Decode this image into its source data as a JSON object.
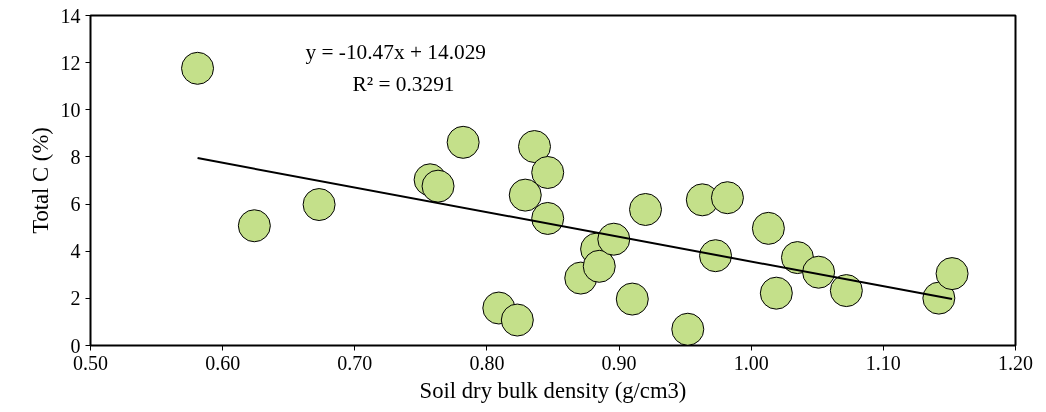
{
  "chart_data": {
    "type": "scatter",
    "xlabel": "Soil dry bulk density (g/cm3)",
    "ylabel": "Total C (%)",
    "xlim": [
      0.5,
      1.2
    ],
    "ylim": [
      0,
      14
    ],
    "xticks": [
      {
        "value": 0.5,
        "label": "0.50"
      },
      {
        "value": 0.6,
        "label": "0.60"
      },
      {
        "value": 0.7,
        "label": "0.70"
      },
      {
        "value": 0.8,
        "label": "0.80"
      },
      {
        "value": 0.9,
        "label": "0.90"
      },
      {
        "value": 1.0,
        "label": "1.00"
      },
      {
        "value": 1.1,
        "label": "1.10"
      },
      {
        "value": 1.2,
        "label": "1.20"
      }
    ],
    "yticks": [
      0,
      2,
      4,
      6,
      8,
      10,
      12,
      14
    ],
    "grid": false,
    "annotations": [
      "y = -10.47x + 14.029",
      "R² = 0.3291"
    ],
    "series": [
      {
        "marker": "circle",
        "color": "#c4e08a",
        "x": [
          0.581,
          0.624,
          0.673,
          0.757,
          0.763,
          0.782,
          0.836,
          0.846,
          0.829,
          0.846,
          0.809,
          0.823,
          0.871,
          0.883,
          0.885,
          0.896,
          0.91,
          0.92,
          0.952,
          0.963,
          0.982,
          0.973,
          1.013,
          1.019,
          1.035,
          1.051,
          1.072,
          1.142,
          1.152
        ],
        "values": [
          11.76,
          5.08,
          5.98,
          7.03,
          6.76,
          8.62,
          8.44,
          7.34,
          6.38,
          5.39,
          1.59,
          1.08,
          2.86,
          4.09,
          3.36,
          4.51,
          1.97,
          5.77,
          0.69,
          6.18,
          6.27,
          3.81,
          4.97,
          2.22,
          3.73,
          3.11,
          2.33,
          2.01,
          3.05
        ]
      },
      {
        "type": "line",
        "marker": "none",
        "color": "#000000",
        "line_style": "solid",
        "x": [
          0.581,
          1.152
        ],
        "values": [
          7.95,
          1.97
        ]
      }
    ]
  }
}
